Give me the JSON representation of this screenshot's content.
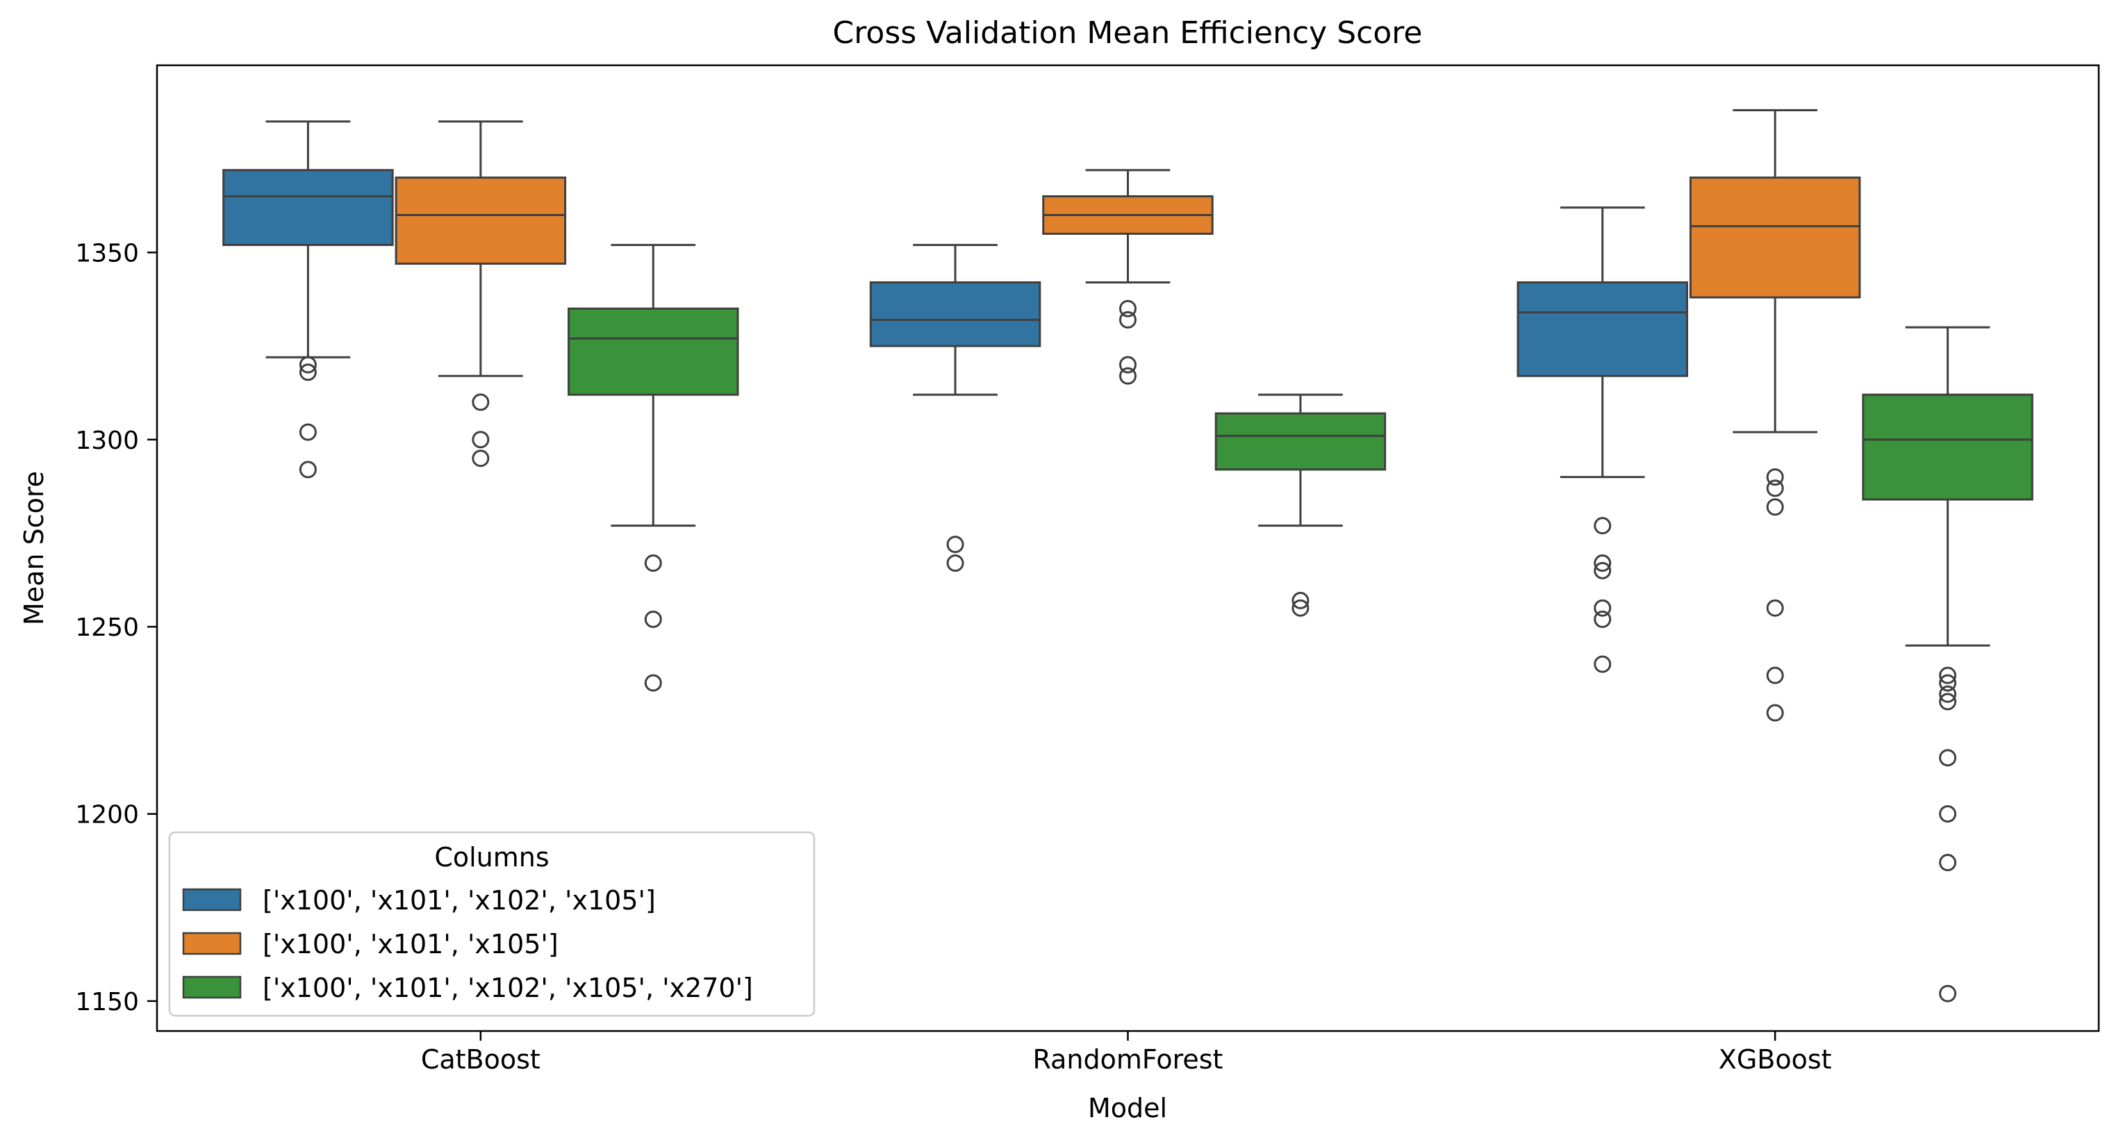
{
  "chart_data": {
    "type": "box",
    "title": "Cross Validation Mean Efficiency Score",
    "xlabel": "Model",
    "ylabel": "Mean Score",
    "categories": [
      "CatBoost",
      "RandomForest",
      "XGBoost"
    ],
    "ylim": [
      1142,
      1400
    ],
    "yticks": [
      1150,
      1200,
      1250,
      1300,
      1350
    ],
    "grid": false,
    "legend": {
      "title": "Columns",
      "placement": "lower-left"
    },
    "series": [
      {
        "name": "['x100', 'x101', 'x102', 'x105']",
        "color": "#3274a1",
        "boxes": [
          {
            "whislo": 1322,
            "q1": 1352,
            "med": 1365,
            "q3": 1372,
            "whishi": 1385,
            "fliers": [
              1320,
              1318,
              1302,
              1292
            ]
          },
          {
            "whislo": 1312,
            "q1": 1325,
            "med": 1332,
            "q3": 1342,
            "whishi": 1352,
            "fliers": [
              1272,
              1267
            ]
          },
          {
            "whislo": 1290,
            "q1": 1317,
            "med": 1334,
            "q3": 1342,
            "whishi": 1362,
            "fliers": [
              1277,
              1267,
              1265,
              1255,
              1252,
              1240
            ]
          }
        ]
      },
      {
        "name": "['x100', 'x101', 'x105']",
        "color": "#e1812c",
        "boxes": [
          {
            "whislo": 1317,
            "q1": 1347,
            "med": 1360,
            "q3": 1370,
            "whishi": 1385,
            "fliers": [
              1310,
              1300,
              1295
            ]
          },
          {
            "whislo": 1342,
            "q1": 1355,
            "med": 1360,
            "q3": 1365,
            "whishi": 1372,
            "fliers": [
              1335,
              1332,
              1320,
              1317
            ]
          },
          {
            "whislo": 1302,
            "q1": 1338,
            "med": 1357,
            "q3": 1370,
            "whishi": 1388,
            "fliers": [
              1290,
              1287,
              1282,
              1255,
              1237,
              1227
            ]
          }
        ]
      },
      {
        "name": "['x100', 'x101', 'x102', 'x105', 'x270']",
        "color": "#3a923a",
        "boxes": [
          {
            "whislo": 1277,
            "q1": 1312,
            "med": 1327,
            "q3": 1335,
            "whishi": 1352,
            "fliers": [
              1267,
              1252,
              1235
            ]
          },
          {
            "whislo": 1277,
            "q1": 1292,
            "med": 1301,
            "q3": 1307,
            "whishi": 1312,
            "fliers": [
              1257,
              1255
            ]
          },
          {
            "whislo": 1245,
            "q1": 1284,
            "med": 1300,
            "q3": 1312,
            "whishi": 1330,
            "fliers": [
              1237,
              1235,
              1232,
              1230,
              1215,
              1200,
              1187,
              1152
            ]
          }
        ]
      }
    ]
  }
}
